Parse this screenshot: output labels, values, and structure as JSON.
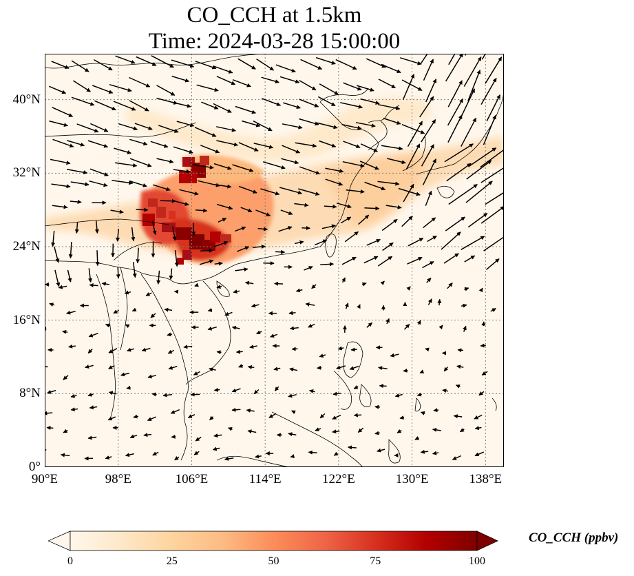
{
  "title": {
    "line1": "CO_CCH at 1.5km",
    "line2": "Time: 2024-03-28 15:00:00"
  },
  "map": {
    "lon_range": [
      90,
      140
    ],
    "lat_range": [
      0,
      45
    ],
    "lon_ticks": [
      {
        "value": 90,
        "label": "90°E"
      },
      {
        "value": 98,
        "label": "98°E"
      },
      {
        "value": 106,
        "label": "106°E"
      },
      {
        "value": 114,
        "label": "114°E"
      },
      {
        "value": 122,
        "label": "122°E"
      },
      {
        "value": 130,
        "label": "130°E"
      },
      {
        "value": 138,
        "label": "138°E"
      }
    ],
    "lat_ticks": [
      {
        "value": 0,
        "label": "0°"
      },
      {
        "value": 8,
        "label": "8°N"
      },
      {
        "value": 16,
        "label": "16°N"
      },
      {
        "value": 24,
        "label": "24°N"
      },
      {
        "value": 32,
        "label": "32°N"
      },
      {
        "value": 40,
        "label": "40°N"
      }
    ],
    "gridlines": true
  },
  "colorbar": {
    "label": "CO_CCH (ppbv)",
    "min": 0,
    "max": 100,
    "ticks": [
      {
        "value": 0,
        "label": "0"
      },
      {
        "value": 25,
        "label": "25"
      },
      {
        "value": 50,
        "label": "50"
      },
      {
        "value": 75,
        "label": "75"
      },
      {
        "value": 100,
        "label": "100"
      }
    ],
    "colormap": "OrRd",
    "extend": "both"
  },
  "colors": {
    "background_field": "#fff7ec",
    "coast": "#000000",
    "grid": "#7f7f7f"
  }
}
